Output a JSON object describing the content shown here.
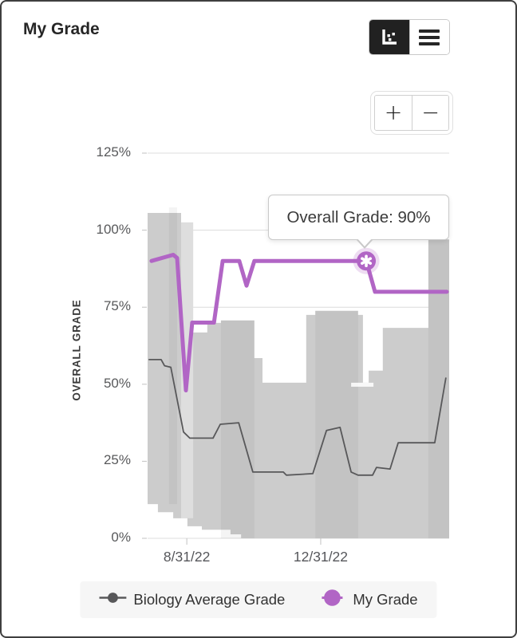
{
  "window": {
    "title": "My Grade"
  },
  "toolbar": {
    "view_toggle": {
      "selected": "chart",
      "options": [
        "chart",
        "table"
      ]
    },
    "icons": {
      "chart_view": "bar-chart-icon",
      "table_view": "list-icon",
      "zoom_in": "plus-icon",
      "zoom_out": "minus-icon"
    },
    "zoom_in_label": "+",
    "zoom_out_label": "−"
  },
  "tooltip": {
    "text": "Overall Grade: 90%"
  },
  "legend": [
    {
      "label": "Biology Average Grade",
      "color": "#58585a",
      "marker": "small-dot-with-line"
    },
    {
      "label": "My Grade",
      "color": "#b165c5",
      "marker": "large-dot-with-line"
    }
  ],
  "chart_data": {
    "type": "line",
    "title": "My Grade",
    "ylabel": "OVERALL GRADE",
    "xlabel": "",
    "ylim": [
      0,
      125
    ],
    "grid": true,
    "legend_position": "bottom",
    "yticks": [
      {
        "value": 0,
        "label": "0%"
      },
      {
        "value": 25,
        "label": "25%"
      },
      {
        "value": 50,
        "label": "50%"
      },
      {
        "value": 75,
        "label": "75%"
      },
      {
        "value": 100,
        "label": "100%"
      },
      {
        "value": 125,
        "label": "125%"
      }
    ],
    "xticks": [
      {
        "pos": 0.13,
        "label": "8/31/22"
      },
      {
        "pos": 0.574,
        "label": "12/31/22"
      }
    ],
    "series": [
      {
        "name": "Biology Average Grade",
        "color": "#58585a",
        "width": 1.8,
        "points": [
          [
            0.005,
            58
          ],
          [
            0.045,
            58
          ],
          [
            0.056,
            56
          ],
          [
            0.077,
            55.5
          ],
          [
            0.119,
            34.5
          ],
          [
            0.14,
            32.5
          ],
          [
            0.217,
            32.5
          ],
          [
            0.241,
            37
          ],
          [
            0.302,
            37.5
          ],
          [
            0.349,
            21.5
          ],
          [
            0.45,
            21.5
          ],
          [
            0.46,
            20.5
          ],
          [
            0.548,
            21
          ],
          [
            0.593,
            35
          ],
          [
            0.638,
            36
          ],
          [
            0.675,
            21.5
          ],
          [
            0.698,
            20.5
          ],
          [
            0.746,
            20.5
          ],
          [
            0.759,
            23
          ],
          [
            0.804,
            22.5
          ],
          [
            0.831,
            31
          ],
          [
            0.952,
            31
          ],
          [
            0.989,
            52
          ]
        ]
      },
      {
        "name": "My Grade",
        "color": "#b165c5",
        "width": 5,
        "points": [
          [
            0.013,
            90
          ],
          [
            0.085,
            92
          ],
          [
            0.098,
            91
          ],
          [
            0.127,
            48
          ],
          [
            0.148,
            70
          ],
          [
            0.22,
            70
          ],
          [
            0.249,
            90
          ],
          [
            0.304,
            90
          ],
          [
            0.328,
            82
          ],
          [
            0.354,
            90
          ],
          [
            0.725,
            90
          ],
          [
            0.754,
            80
          ],
          [
            0.992,
            80
          ]
        ]
      }
    ],
    "band": {
      "description": "class grade distribution range (gray skyline band)",
      "color": "#cccccc",
      "silhouette": [
        [
          0,
          105.6
        ],
        [
          0.111,
          105.6
        ],
        [
          0.111,
          102.5
        ],
        [
          0.151,
          102.5
        ],
        [
          0.151,
          66.8
        ],
        [
          0.198,
          66.8
        ],
        [
          0.198,
          69.9
        ],
        [
          0.243,
          69.9
        ],
        [
          0.243,
          70.7
        ],
        [
          0.354,
          70.7
        ],
        [
          0.354,
          58.5
        ],
        [
          0.381,
          58.5
        ],
        [
          0.381,
          50.5
        ],
        [
          0.526,
          50.5
        ],
        [
          0.526,
          72.5
        ],
        [
          0.556,
          72.5
        ],
        [
          0.556,
          73.8
        ],
        [
          0.698,
          73.8
        ],
        [
          0.698,
          72.5
        ],
        [
          0.714,
          72.5
        ],
        [
          0.714,
          50.5
        ],
        [
          0.733,
          50.5
        ],
        [
          0.733,
          54.4
        ],
        [
          0.78,
          54.4
        ],
        [
          0.78,
          68.3
        ],
        [
          0.931,
          68.3
        ],
        [
          0.931,
          97
        ],
        [
          1,
          97
        ],
        [
          1,
          0
        ],
        [
          0.31,
          0
        ],
        [
          0.31,
          1.3
        ],
        [
          0.275,
          1.3
        ],
        [
          0.275,
          2.8
        ],
        [
          0.18,
          2.8
        ],
        [
          0.18,
          3.9
        ],
        [
          0.132,
          3.9
        ],
        [
          0.132,
          6.5
        ],
        [
          0.085,
          6.5
        ],
        [
          0.085,
          8.5
        ],
        [
          0.034,
          8.5
        ],
        [
          0.034,
          11.1
        ],
        [
          0,
          11.1
        ]
      ],
      "overlays": [
        {
          "x1": 0.071,
          "x2": 0.098,
          "top": 107.4,
          "bottom": 11.1,
          "shade": "dark"
        },
        {
          "x1": 0.243,
          "x2": 0.354,
          "top": 70.7,
          "bottom": 0,
          "shade": "dark"
        },
        {
          "x1": 0.556,
          "x2": 0.698,
          "top": 73.8,
          "bottom": 0,
          "shade": "dark"
        },
        {
          "x1": 0.931,
          "x2": 1.0,
          "top": 97,
          "bottom": 0,
          "shade": "dark"
        },
        {
          "x1": 0.111,
          "x2": 0.151,
          "top": 102.5,
          "bottom": 6.5,
          "shade": "light"
        },
        {
          "x1": 0.675,
          "x2": 0.749,
          "top": 50.5,
          "bottom": 49.2,
          "shade": "white"
        }
      ]
    },
    "highlight": {
      "series": "My Grade",
      "pos": 0.725,
      "value": 90,
      "label": "Overall Grade: 90%",
      "marker": "asterisk-icon"
    },
    "colors": {
      "grid": "#dcdcdc",
      "tick_mark": "#c2c2c2",
      "tick_text": "#58595b"
    }
  }
}
